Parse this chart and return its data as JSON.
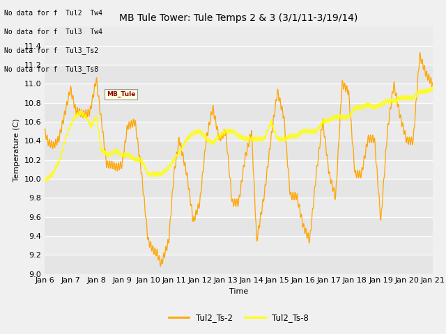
{
  "title": "MB Tule Tower: Tule Temps 2 & 3 (3/1/11-3/19/14)",
  "xlabel": "Time",
  "ylabel": "Temperature (C)",
  "ylim": [
    9.0,
    11.6
  ],
  "yticks": [
    9.0,
    9.2,
    9.4,
    9.6,
    9.8,
    10.0,
    10.2,
    10.4,
    10.6,
    10.8,
    11.0,
    11.2,
    11.4
  ],
  "line1_color": "#FFA500",
  "line2_color": "#FFFF00",
  "line1_label": "Tul2_Ts-2",
  "line2_label": "Tul2_Ts-8",
  "bg_color": "#EBEBEB",
  "legend_outside_text": [
    "No data for f  Tul2  Tw4",
    "No data for f  Tul3  Tw4",
    "No data for f  Tul3_Ts2",
    "No data for f  Tul3_Ts8"
  ],
  "xtick_labels": [
    "Jan 6",
    "Jan 7",
    "Jan 8",
    "Jan 9",
    "Jan 10",
    "Jan 11",
    "Jan 12",
    "Jan 13",
    "Jan 14",
    "Jan 15",
    "Jan 16",
    "Jan 17",
    "Jan 18",
    "Jan 19",
    "Jan 20",
    "Jan 21"
  ],
  "title_fontsize": 10,
  "axis_label_fontsize": 8,
  "tick_fontsize": 8,
  "figsize": [
    6.4,
    4.8
  ],
  "dpi": 100,
  "orange_t": [
    0,
    0.15,
    0.35,
    0.55,
    0.75,
    1.0,
    1.2,
    1.5,
    1.75,
    2.0,
    2.2,
    2.4,
    2.6,
    2.8,
    3.0,
    3.2,
    3.5,
    3.75,
    4.0,
    4.2,
    4.35,
    4.5,
    4.65,
    4.8,
    5.0,
    5.2,
    5.5,
    5.75,
    6.0,
    6.25,
    6.5,
    6.75,
    7.0,
    7.25,
    7.5,
    7.75,
    8.0,
    8.2,
    8.5,
    8.75,
    9.0,
    9.25,
    9.5,
    9.75,
    10.0,
    10.25,
    10.5,
    10.75,
    11.0,
    11.25,
    11.5,
    11.75,
    12.0,
    12.25,
    12.5,
    12.75,
    13.0,
    13.25,
    13.5,
    13.75,
    14.0,
    14.25,
    14.5,
    14.75,
    15.0
  ],
  "orange_v": [
    10.5,
    10.38,
    10.35,
    10.42,
    10.65,
    10.95,
    10.72,
    10.68,
    10.7,
    11.05,
    10.6,
    10.15,
    10.15,
    10.12,
    10.15,
    10.55,
    10.6,
    10.05,
    9.35,
    9.25,
    9.22,
    9.1,
    9.22,
    9.35,
    10.05,
    10.42,
    10.05,
    9.55,
    9.75,
    10.42,
    10.75,
    10.42,
    10.5,
    9.75,
    9.75,
    10.22,
    10.5,
    9.35,
    9.85,
    10.42,
    10.92,
    10.65,
    9.82,
    9.82,
    9.5,
    9.35,
    10.05,
    10.62,
    10.05,
    9.8,
    11.0,
    10.92,
    10.05,
    10.05,
    10.42,
    10.42,
    9.55,
    10.5,
    11.0,
    10.65,
    10.4,
    10.4,
    11.3,
    11.1,
    11.0
  ],
  "yellow_t": [
    0,
    0.3,
    0.6,
    0.9,
    1.15,
    1.4,
    1.6,
    1.8,
    2.0,
    2.2,
    2.5,
    2.75,
    3.0,
    3.25,
    3.5,
    3.75,
    4.0,
    4.25,
    4.5,
    4.75,
    5.0,
    5.25,
    5.5,
    5.75,
    6.0,
    6.25,
    6.5,
    6.75,
    7.0,
    7.25,
    7.5,
    7.75,
    8.0,
    8.25,
    8.5,
    8.75,
    9.0,
    9.25,
    9.5,
    9.75,
    10.0,
    10.25,
    10.5,
    10.75,
    11.0,
    11.25,
    11.5,
    11.75,
    12.0,
    12.25,
    12.5,
    12.75,
    13.0,
    13.25,
    13.5,
    13.75,
    14.0,
    14.25,
    14.5,
    14.75,
    15.0
  ],
  "yellow_v": [
    9.98,
    10.05,
    10.2,
    10.5,
    10.65,
    10.7,
    10.65,
    10.55,
    10.65,
    10.3,
    10.25,
    10.3,
    10.25,
    10.25,
    10.2,
    10.2,
    10.05,
    10.05,
    10.05,
    10.1,
    10.2,
    10.3,
    10.42,
    10.48,
    10.5,
    10.42,
    10.38,
    10.45,
    10.5,
    10.5,
    10.45,
    10.42,
    10.42,
    10.42,
    10.42,
    10.6,
    10.42,
    10.42,
    10.45,
    10.45,
    10.5,
    10.5,
    10.5,
    10.6,
    10.62,
    10.65,
    10.65,
    10.65,
    10.75,
    10.75,
    10.78,
    10.75,
    10.78,
    10.82,
    10.82,
    10.85,
    10.85,
    10.85,
    10.92,
    10.92,
    10.95
  ]
}
